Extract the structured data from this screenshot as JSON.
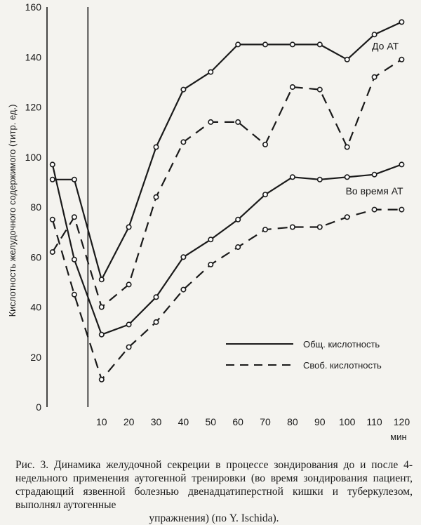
{
  "chart_data": {
    "type": "line",
    "ylabel": "Кислотность желудочного содержимого  (титр. ед.)",
    "x_unit": "мин",
    "x_ticks": [
      10,
      20,
      30,
      40,
      50,
      60,
      70,
      80,
      90,
      100,
      110,
      120
    ],
    "y_ticks": [
      0,
      20,
      40,
      60,
      80,
      100,
      120,
      140,
      160
    ],
    "ylim": [
      0,
      160
    ],
    "xlim": [
      -10,
      124
    ],
    "vertical_line_x": 5,
    "grid": false,
    "annotations": [
      {
        "text": "До АТ",
        "x": 114,
        "y": 143
      },
      {
        "text": "Во время АТ",
        "x": 110,
        "y": 85
      }
    ],
    "legend": [
      {
        "label": "Общ. кислотность",
        "style": "solid"
      },
      {
        "label": "Своб. кислотность",
        "style": "dashed"
      }
    ],
    "series": [
      {
        "style": "solid",
        "group": "До АТ",
        "x": [
          -8,
          0,
          10,
          20,
          30,
          40,
          50,
          60,
          70,
          80,
          90,
          100,
          110,
          120
        ],
        "y": [
          91,
          91,
          51,
          72,
          104,
          127,
          134,
          145,
          145,
          145,
          145,
          139,
          149,
          154
        ]
      },
      {
        "style": "dashed",
        "group": "До АТ",
        "x": [
          -8,
          0,
          10,
          20,
          30,
          40,
          50,
          60,
          70,
          80,
          90,
          100,
          110,
          120
        ],
        "y": [
          62,
          76,
          40,
          49,
          84,
          106,
          114,
          114,
          105,
          128,
          127,
          104,
          132,
          139
        ]
      },
      {
        "style": "solid",
        "group": "Во время АТ",
        "x": [
          -8,
          0,
          10,
          20,
          30,
          40,
          50,
          60,
          70,
          80,
          90,
          100,
          110,
          120
        ],
        "y": [
          97,
          59,
          29,
          33,
          44,
          60,
          67,
          75,
          85,
          92,
          91,
          92,
          93,
          97
        ]
      },
      {
        "style": "dashed",
        "group": "Во время АТ",
        "x": [
          -8,
          0,
          10,
          20,
          30,
          40,
          50,
          60,
          70,
          80,
          90,
          100,
          110,
          120
        ],
        "y": [
          75,
          45,
          11,
          24,
          34,
          47,
          57,
          64,
          71,
          72,
          72,
          76,
          79,
          79
        ]
      }
    ]
  },
  "caption": {
    "line1": "Рис. 3. Динамика желудочной секреции в процессе зондирования",
    "line2": "до и после 4-недельного применения аутогенной тренировки (во",
    "line3": "время зондирования пациент, страдающий язвенной болезнью двенадцатиперстной кишки и туберкулезом, выполнял аутогенные",
    "line4": "упражнения) (по Y. Ischida)."
  }
}
